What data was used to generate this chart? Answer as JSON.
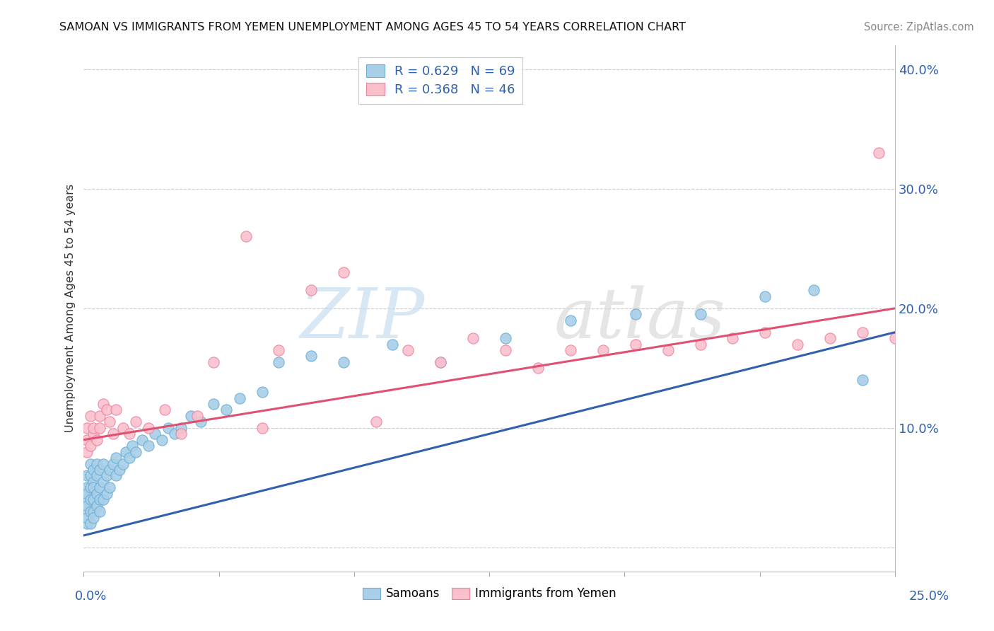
{
  "title": "SAMOAN VS IMMIGRANTS FROM YEMEN UNEMPLOYMENT AMONG AGES 45 TO 54 YEARS CORRELATION CHART",
  "source": "Source: ZipAtlas.com",
  "ylabel": "Unemployment Among Ages 45 to 54 years",
  "xlim": [
    0.0,
    0.25
  ],
  "ylim": [
    -0.02,
    0.42
  ],
  "yticks": [
    0.0,
    0.1,
    0.2,
    0.3,
    0.4
  ],
  "ytick_labels": [
    "",
    "10.0%",
    "20.0%",
    "30.0%",
    "40.0%"
  ],
  "samoan_color": "#a8cfe8",
  "samoan_edge": "#6aaed6",
  "yemen_color": "#f9c0cc",
  "yemen_edge": "#f080a0",
  "line_samoan": "#3060b0",
  "line_yemen": "#e05070",
  "watermark_zip": "ZIP",
  "watermark_atlas": "atlas",
  "samoan_line_x0": 0.0,
  "samoan_line_y0": 0.01,
  "samoan_line_x1": 0.25,
  "samoan_line_y1": 0.18,
  "yemen_line_x0": 0.0,
  "yemen_line_y0": 0.09,
  "yemen_line_x1": 0.25,
  "yemen_line_y1": 0.2,
  "samoan_x": [
    0.001,
    0.001,
    0.001,
    0.001,
    0.001,
    0.001,
    0.001,
    0.001,
    0.002,
    0.002,
    0.002,
    0.002,
    0.002,
    0.002,
    0.003,
    0.003,
    0.003,
    0.003,
    0.003,
    0.003,
    0.004,
    0.004,
    0.004,
    0.004,
    0.005,
    0.005,
    0.005,
    0.005,
    0.006,
    0.006,
    0.006,
    0.007,
    0.007,
    0.008,
    0.008,
    0.009,
    0.01,
    0.01,
    0.011,
    0.012,
    0.013,
    0.014,
    0.015,
    0.016,
    0.018,
    0.02,
    0.022,
    0.024,
    0.026,
    0.028,
    0.03,
    0.033,
    0.036,
    0.04,
    0.044,
    0.048,
    0.055,
    0.06,
    0.07,
    0.08,
    0.095,
    0.11,
    0.13,
    0.15,
    0.17,
    0.19,
    0.21,
    0.225,
    0.24
  ],
  "samoan_y": [
    0.04,
    0.03,
    0.05,
    0.02,
    0.06,
    0.035,
    0.025,
    0.045,
    0.05,
    0.03,
    0.06,
    0.04,
    0.02,
    0.07,
    0.04,
    0.055,
    0.03,
    0.065,
    0.025,
    0.05,
    0.045,
    0.06,
    0.035,
    0.07,
    0.05,
    0.04,
    0.065,
    0.03,
    0.055,
    0.07,
    0.04,
    0.06,
    0.045,
    0.065,
    0.05,
    0.07,
    0.06,
    0.075,
    0.065,
    0.07,
    0.08,
    0.075,
    0.085,
    0.08,
    0.09,
    0.085,
    0.095,
    0.09,
    0.1,
    0.095,
    0.1,
    0.11,
    0.105,
    0.12,
    0.115,
    0.125,
    0.13,
    0.155,
    0.16,
    0.155,
    0.17,
    0.155,
    0.175,
    0.19,
    0.195,
    0.195,
    0.21,
    0.215,
    0.14
  ],
  "yemen_x": [
    0.001,
    0.001,
    0.001,
    0.002,
    0.002,
    0.003,
    0.003,
    0.004,
    0.005,
    0.005,
    0.006,
    0.007,
    0.008,
    0.009,
    0.01,
    0.012,
    0.014,
    0.016,
    0.02,
    0.025,
    0.03,
    0.035,
    0.04,
    0.05,
    0.055,
    0.06,
    0.07,
    0.08,
    0.09,
    0.1,
    0.11,
    0.12,
    0.13,
    0.14,
    0.15,
    0.16,
    0.17,
    0.18,
    0.19,
    0.2,
    0.21,
    0.22,
    0.23,
    0.24,
    0.245,
    0.25
  ],
  "yemen_y": [
    0.08,
    0.09,
    0.1,
    0.11,
    0.085,
    0.095,
    0.1,
    0.09,
    0.1,
    0.11,
    0.12,
    0.115,
    0.105,
    0.095,
    0.115,
    0.1,
    0.095,
    0.105,
    0.1,
    0.115,
    0.095,
    0.11,
    0.155,
    0.26,
    0.1,
    0.165,
    0.215,
    0.23,
    0.105,
    0.165,
    0.155,
    0.175,
    0.165,
    0.15,
    0.165,
    0.165,
    0.17,
    0.165,
    0.17,
    0.175,
    0.18,
    0.17,
    0.175,
    0.18,
    0.33,
    0.175
  ]
}
